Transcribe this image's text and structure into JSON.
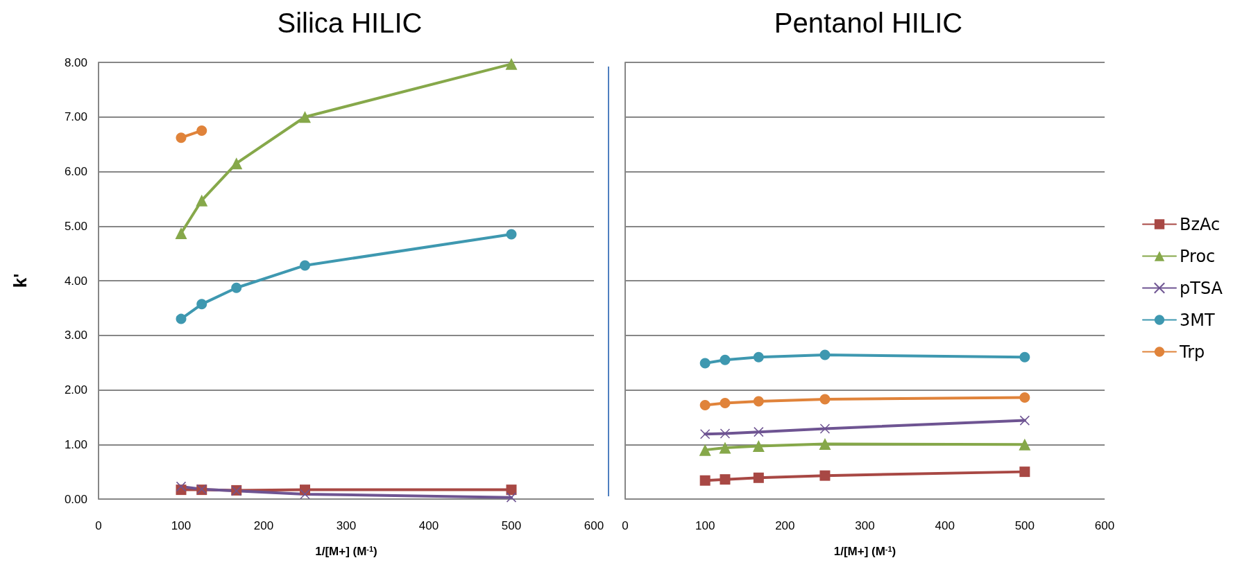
{
  "chart_data": [
    {
      "type": "line",
      "title": "Silica HILIC",
      "xlabel": "1/[M+] (M$^{-1}$)",
      "ylabel": "k'",
      "x": [
        100,
        125,
        167,
        250,
        500
      ],
      "series": [
        {
          "color": "#a84844",
          "marker": "square",
          "values": [
            0.17,
            0.17,
            0.16,
            0.17,
            0.17
          ]
        },
        {
          "color": "#86a84a",
          "marker": "triangle",
          "values": [
            4.87,
            5.47,
            6.15,
            7.0,
            7.97
          ]
        },
        {
          "color": "#6e5492",
          "marker": "cross",
          "values": [
            0.23,
            0.18,
            0.15,
            0.09,
            0.03
          ]
        },
        {
          "color": "#3e98b0",
          "marker": "circle",
          "values": [
            3.3,
            3.57,
            3.87,
            4.28,
            4.85
          ]
        },
        {
          "color": "#e0833a",
          "marker": "circle",
          "x": [
            100,
            125
          ],
          "values": [
            6.62,
            6.75
          ]
        }
      ],
      "xlim": [
        0,
        600
      ],
      "xticks": [
        0,
        100,
        200,
        300,
        400,
        500,
        600
      ],
      "ylim": [
        0,
        8
      ],
      "yticks": [
        {
          "value": 0,
          "label": "0.00"
        },
        {
          "value": 1,
          "label": "1.00"
        },
        {
          "value": 2,
          "label": "2.00"
        },
        {
          "value": 3,
          "label": "3.00"
        },
        {
          "value": 4,
          "label": "4.00"
        },
        {
          "value": 5,
          "label": "5.00"
        },
        {
          "value": 6,
          "label": "6.00"
        },
        {
          "value": 7,
          "label": "7.00"
        },
        {
          "value": 8,
          "label": "8.00"
        }
      ],
      "grid": "y",
      "legend": false
    },
    {
      "type": "line",
      "title": "Pentanol HILIC",
      "xlabel": "1/[M+] (M$^{-1}$)",
      "x": [
        100,
        125,
        167,
        250,
        500
      ],
      "series": [
        {
          "name": "BzAc",
          "color": "#a84844",
          "marker": "square",
          "values": [
            0.34,
            0.36,
            0.39,
            0.43,
            0.5
          ]
        },
        {
          "name": "Proc",
          "color": "#86a84a",
          "marker": "triangle",
          "values": [
            0.9,
            0.94,
            0.97,
            1.01,
            1.0
          ]
        },
        {
          "name": "pTSA",
          "color": "#6e5492",
          "marker": "cross",
          "values": [
            1.19,
            1.2,
            1.23,
            1.29,
            1.44
          ]
        },
        {
          "name": "3MT",
          "color": "#3e98b0",
          "marker": "circle",
          "values": [
            2.49,
            2.55,
            2.6,
            2.64,
            2.6
          ]
        },
        {
          "name": "Trp",
          "color": "#e0833a",
          "marker": "circle",
          "values": [
            1.72,
            1.76,
            1.79,
            1.83,
            1.86
          ]
        }
      ],
      "xlim": [
        0,
        600
      ],
      "xticks": [
        0,
        100,
        200,
        300,
        400,
        500,
        600
      ],
      "ylim": [
        0,
        8
      ],
      "yticks": [
        0,
        1,
        2,
        3,
        4,
        5,
        6,
        7,
        8
      ],
      "tick_labels": "x",
      "grid": "y",
      "legend": "right"
    }
  ]
}
